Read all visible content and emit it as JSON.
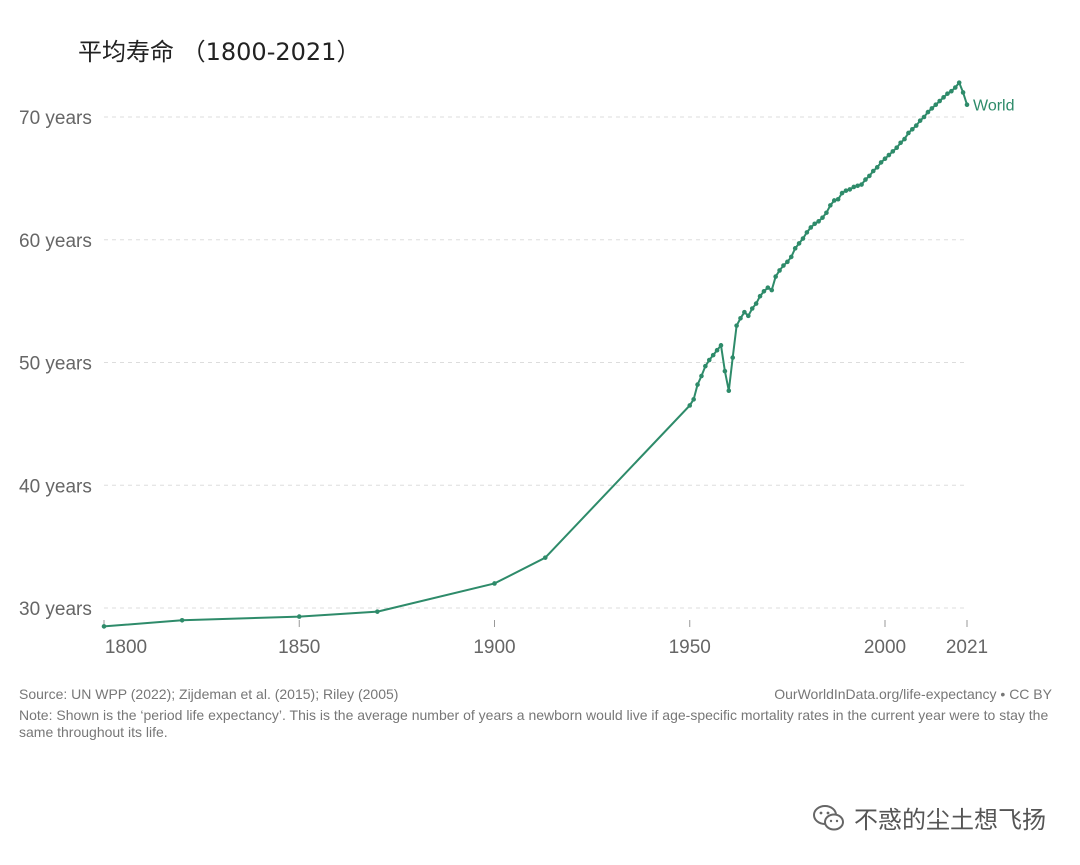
{
  "chart_data": {
    "type": "line",
    "title": "平均寿命 （1800-2021）",
    "xlabel": "",
    "ylabel": "",
    "xlim": [
      1800,
      2021
    ],
    "ylim": [
      28,
      73.5
    ],
    "y_ticks": [
      30,
      40,
      50,
      60,
      70
    ],
    "y_tick_suffix": " years",
    "x_ticks": [
      1800,
      1850,
      1900,
      1950,
      2000,
      2021
    ],
    "grid": "horizontal dashed",
    "series": [
      {
        "name": "World",
        "color": "#2e8b6a",
        "x": [
          1800,
          1820,
          1850,
          1870,
          1900,
          1913,
          1950,
          1951,
          1952,
          1953,
          1954,
          1955,
          1956,
          1957,
          1958,
          1959,
          1960,
          1961,
          1962,
          1963,
          1964,
          1965,
          1966,
          1967,
          1968,
          1969,
          1970,
          1971,
          1972,
          1973,
          1974,
          1975,
          1976,
          1977,
          1978,
          1979,
          1980,
          1981,
          1982,
          1983,
          1984,
          1985,
          1986,
          1987,
          1988,
          1989,
          1990,
          1991,
          1992,
          1993,
          1994,
          1995,
          1996,
          1997,
          1998,
          1999,
          2000,
          2001,
          2002,
          2003,
          2004,
          2005,
          2006,
          2007,
          2008,
          2009,
          2010,
          2011,
          2012,
          2013,
          2014,
          2015,
          2016,
          2017,
          2018,
          2019,
          2020,
          2021
        ],
        "values": [
          28.5,
          29.0,
          29.3,
          29.7,
          32.0,
          34.1,
          46.5,
          47.0,
          48.2,
          48.9,
          49.7,
          50.2,
          50.6,
          51.0,
          51.4,
          49.3,
          47.7,
          50.4,
          53.0,
          53.6,
          54.1,
          53.8,
          54.4,
          54.8,
          55.4,
          55.8,
          56.1,
          55.9,
          57.0,
          57.5,
          57.9,
          58.2,
          58.6,
          59.3,
          59.7,
          60.1,
          60.6,
          61.0,
          61.3,
          61.5,
          61.8,
          62.2,
          62.8,
          63.2,
          63.3,
          63.8,
          64.0,
          64.1,
          64.3,
          64.4,
          64.5,
          64.9,
          65.2,
          65.6,
          65.9,
          66.3,
          66.6,
          66.9,
          67.2,
          67.5,
          67.9,
          68.2,
          68.7,
          69.0,
          69.3,
          69.7,
          70.0,
          70.4,
          70.7,
          71.0,
          71.3,
          71.6,
          71.9,
          72.1,
          72.4,
          72.8,
          72.0,
          71.0
        ]
      }
    ]
  },
  "footer": {
    "source": "Source: UN WPP (2022); Zijdeman et al. (2015); Riley (2005)",
    "url": "OurWorldInData.org/life-expectancy • CC BY",
    "note": "Note: Shown is the ‘period life expectancy’. This is the average number of years a newborn would live if age-specific mortality rates in the current year were to stay the same throughout its life."
  },
  "watermark": "不惑的尘土想飞扬"
}
